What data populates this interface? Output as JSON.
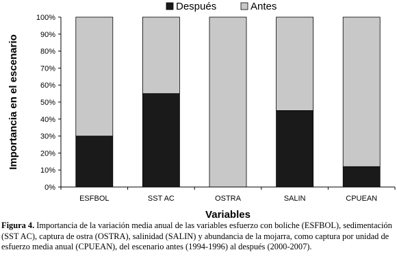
{
  "chart_data": {
    "type": "bar",
    "stacked": true,
    "normalized_percent": true,
    "categories": [
      "ESFBOL",
      "SST AC",
      "OSTRA",
      "SALIN",
      "CPUEAN"
    ],
    "series": [
      {
        "name": "Después",
        "color": "#1a1a1a",
        "values": [
          30,
          55,
          0,
          45,
          12
        ]
      },
      {
        "name": "Antes",
        "color": "#c8c8c8",
        "values": [
          70,
          45,
          100,
          55,
          88
        ]
      }
    ],
    "xlabel": "Variables",
    "ylabel": "Importancia en el escenario",
    "ylim": [
      0,
      100
    ],
    "yticks": [
      "0%",
      "10%",
      "20%",
      "30%",
      "40%",
      "50%",
      "60%",
      "70%",
      "80%",
      "90%",
      "100%"
    ],
    "legend_position": "top-right",
    "grid": false
  },
  "caption": {
    "label": "Figura 4.",
    "text": "Importancia de la variación media anual de las variables esfuerzo con boliche (ESFBOL), sedimentación (SST AC), captura de ostra (OSTRA), salinidad (SALIN) y abundancia de la mojarra, como captura por unidad de esfuerzo media anual (CPUEAN), del escenario antes (1994-1996) al después (2000-2007)."
  }
}
